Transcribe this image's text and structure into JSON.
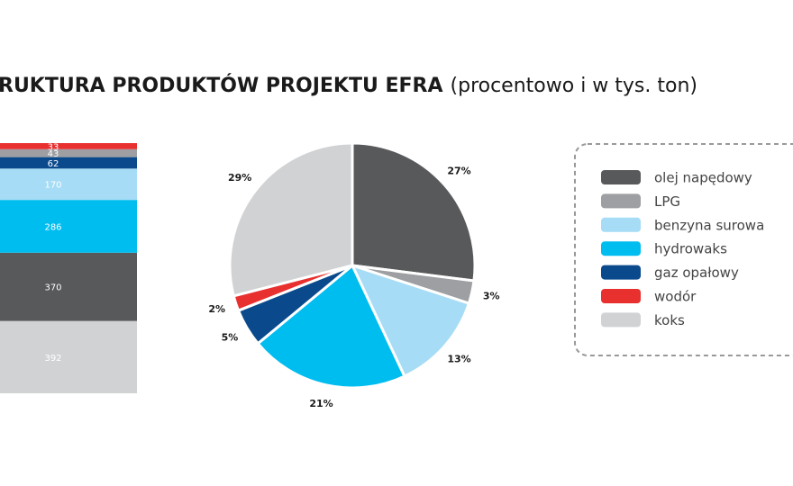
{
  "chart_data": [
    {
      "type": "bar",
      "stacked": true,
      "title": "RUKTURA PRODUKTÓW PROJEKTU EFRA",
      "subtitle": "(procentowo i w tys. ton)",
      "series": [
        {
          "name": "koks",
          "color": "#d1d2d4",
          "values": [
            392
          ]
        },
        {
          "name": "olej napędowy",
          "color": "#58595b",
          "values": [
            370
          ]
        },
        {
          "name": "hydrowaks",
          "color": "#00bdf0",
          "values": [
            286
          ]
        },
        {
          "name": "benzyna surowa",
          "color": "#a6dcf5",
          "values": [
            170
          ]
        },
        {
          "name": "gaz opałowy",
          "color": "#0a4a8c",
          "values": [
            62
          ]
        },
        {
          "name": "LPG",
          "color": "#9d9fa2",
          "values": [
            43
          ]
        },
        {
          "name": "wodór",
          "color": "#e8302f",
          "values": [
            33
          ]
        }
      ]
    },
    {
      "type": "pie",
      "categories": [
        "olej napędowy",
        "LPG",
        "benzyna surowa",
        "hydrowaks",
        "gaz opałowy",
        "wodór",
        "koks"
      ],
      "values": [
        27,
        3,
        13,
        21,
        5,
        2,
        29
      ],
      "value_labels": [
        "27%",
        "3%",
        "13%",
        "21%",
        "5%",
        "2%",
        "29%"
      ],
      "colors": [
        "#58595b",
        "#9d9fa2",
        "#a6dcf5",
        "#00bdf0",
        "#0a4a8c",
        "#e8302f",
        "#d1d2d4"
      ]
    }
  ]
}
